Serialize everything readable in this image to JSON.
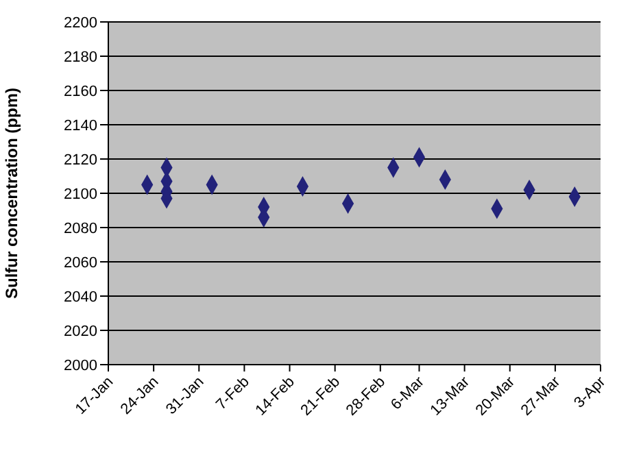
{
  "chart_data": {
    "type": "scatter",
    "ylabel": "Sulfur concentration (ppm)",
    "x": [
      "--01-23",
      "--01-26",
      "--01-26",
      "--01-26",
      "--01-26",
      "--02-02",
      "--02-10",
      "--02-10",
      "--02-16",
      "--02-23",
      "--03-02",
      "--03-06",
      "--03-10",
      "--03-18",
      "--03-23",
      "--03-30"
    ],
    "values": [
      2105,
      2115,
      2107,
      2101,
      2097,
      2105,
      2092,
      2086,
      2104,
      2094,
      2115,
      2121,
      2108,
      2091,
      2102,
      2098
    ],
    "color": "#22227a",
    "marker": "diamond",
    "grid": "y",
    "legend": false,
    "xlim": [
      "--01-17",
      "--04-03"
    ],
    "xticks": [
      {
        "value": "--01-17",
        "label": "17-Jan"
      },
      {
        "value": "--01-24",
        "label": "24-Jan"
      },
      {
        "value": "--01-31",
        "label": "31-Jan"
      },
      {
        "value": "--02-07",
        "label": "7-Feb"
      },
      {
        "value": "--02-14",
        "label": "14-Feb"
      },
      {
        "value": "--02-21",
        "label": "21-Feb"
      },
      {
        "value": "--02-28",
        "label": "28-Feb"
      },
      {
        "value": "--03-06",
        "label": "6-Mar"
      },
      {
        "value": "--03-13",
        "label": "13-Mar"
      },
      {
        "value": "--03-20",
        "label": "20-Mar"
      },
      {
        "value": "--03-27",
        "label": "27-Mar"
      },
      {
        "value": "--04-03",
        "label": "3-Apr"
      }
    ],
    "ylim": [
      2000,
      2200
    ],
    "yticks": [
      2000,
      2020,
      2040,
      2060,
      2080,
      2100,
      2120,
      2140,
      2160,
      2180,
      2200
    ]
  }
}
